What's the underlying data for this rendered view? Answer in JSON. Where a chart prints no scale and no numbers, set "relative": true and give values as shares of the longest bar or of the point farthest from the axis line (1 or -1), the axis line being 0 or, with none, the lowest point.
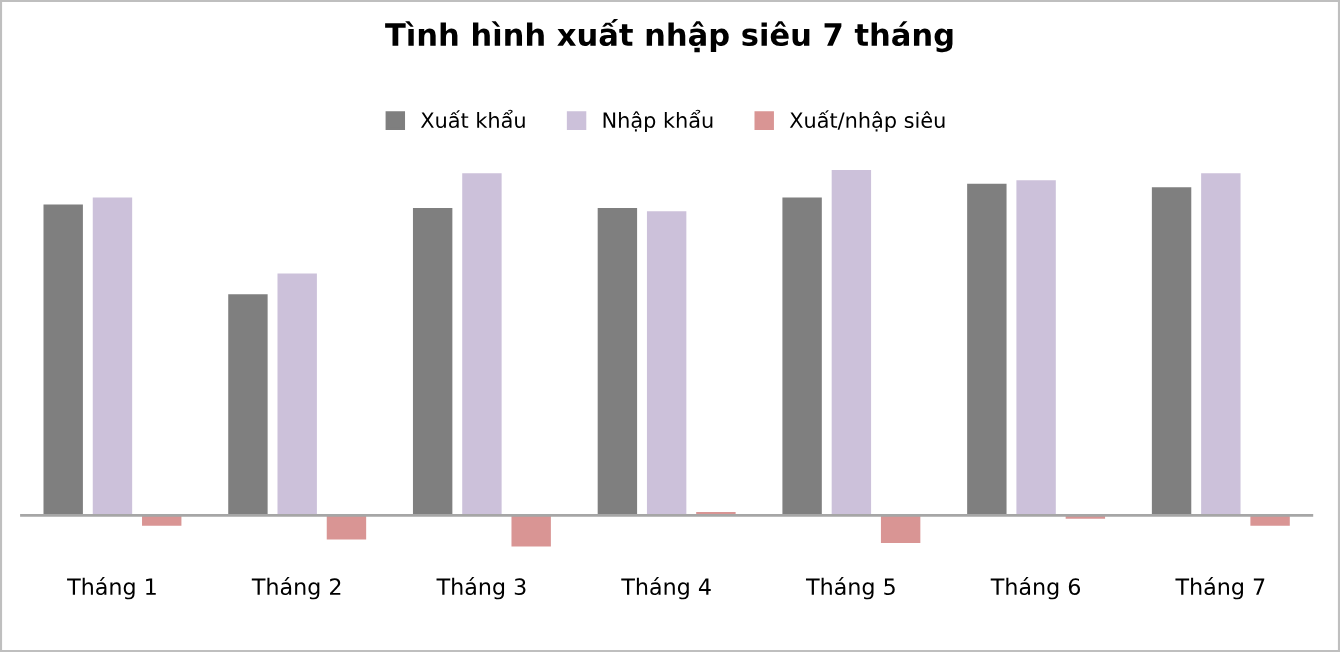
{
  "chart_data": {
    "type": "bar",
    "title": "Tình hình xuất nhập siêu 7 tháng",
    "relative": true,
    "legend": "top",
    "grid": false,
    "categories": [
      "Tháng 1",
      "Tháng 2",
      "Tháng 3",
      "Tháng 4",
      "Tháng 5",
      "Tháng 6",
      "Tháng 7"
    ],
    "series": [
      {
        "name": "Xuất khẩu",
        "color": "#7f7f7f",
        "values": [
          0.9,
          0.64,
          0.89,
          0.89,
          0.92,
          0.96,
          0.95
        ]
      },
      {
        "name": "Nhập khẩu",
        "color": "#ccc1da",
        "values": [
          0.92,
          0.7,
          0.99,
          0.88,
          1,
          0.97,
          0.99
        ]
      },
      {
        "name": "Xuất/nhập siêu",
        "color": "#d99594",
        "values": [
          -0.03,
          -0.07,
          -0.09,
          0.01,
          -0.08,
          -0.01,
          -0.03
        ]
      }
    ]
  }
}
